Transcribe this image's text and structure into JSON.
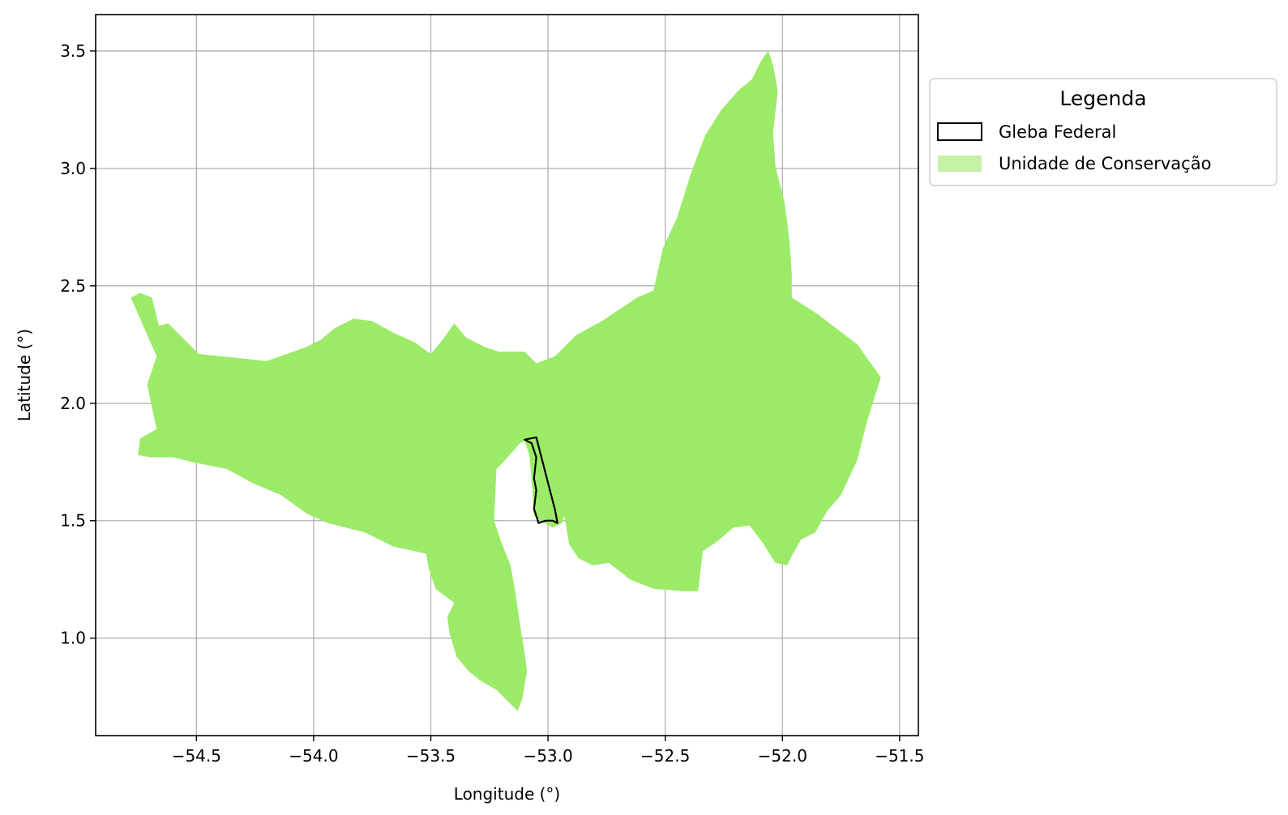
{
  "map": {
    "xlabel": "Longitude (°)",
    "ylabel": "Latitude (°)",
    "xlim": [
      -54.93,
      -51.42
    ],
    "ylim": [
      0.585,
      3.655
    ],
    "x_ticks": [
      -54.5,
      -54.0,
      -53.5,
      -53.0,
      -52.5,
      -52.0,
      -51.5
    ],
    "y_ticks": [
      1.0,
      1.5,
      2.0,
      2.5,
      3.0,
      3.5
    ],
    "x_tick_labels": [
      "−54.5",
      "−54.0",
      "−53.5",
      "−53.0",
      "−52.5",
      "−52.0",
      "−51.5"
    ],
    "y_tick_labels": [
      "1.0",
      "1.5",
      "2.0",
      "2.5",
      "3.0",
      "3.5"
    ],
    "grid": true,
    "legend": {
      "title": "Legenda",
      "placement": "outside-upper-right",
      "items": [
        {
          "label": "Gleba Federal",
          "style": "outline",
          "color": "#000000"
        },
        {
          "label": "Unidade de Conservação",
          "style": "fill",
          "color": "#9BEB68"
        }
      ]
    },
    "layers": {
      "conservation_unit": {
        "name": "Unidade de Conservação",
        "fill": "#9BEB68",
        "polygon": [
          [
            -54.78,
            2.45
          ],
          [
            -54.74,
            2.47
          ],
          [
            -54.69,
            2.45
          ],
          [
            -54.66,
            2.33
          ],
          [
            -54.62,
            2.34
          ],
          [
            -54.49,
            2.21
          ],
          [
            -54.2,
            2.18
          ],
          [
            -54.03,
            2.24
          ],
          [
            -53.97,
            2.27
          ],
          [
            -53.91,
            2.32
          ],
          [
            -53.83,
            2.36
          ],
          [
            -53.75,
            2.35
          ],
          [
            -53.66,
            2.3
          ],
          [
            -53.57,
            2.26
          ],
          [
            -53.5,
            2.21
          ],
          [
            -53.45,
            2.27
          ],
          [
            -53.4,
            2.34
          ],
          [
            -53.35,
            2.28
          ],
          [
            -53.27,
            2.24
          ],
          [
            -53.21,
            2.22
          ],
          [
            -53.1,
            2.22
          ],
          [
            -53.05,
            2.17
          ],
          [
            -52.97,
            2.2
          ],
          [
            -52.88,
            2.29
          ],
          [
            -52.77,
            2.35
          ],
          [
            -52.62,
            2.45
          ],
          [
            -52.55,
            2.48
          ],
          [
            -52.51,
            2.66
          ],
          [
            -52.45,
            2.79
          ],
          [
            -52.39,
            2.98
          ],
          [
            -52.33,
            3.14
          ],
          [
            -52.26,
            3.25
          ],
          [
            -52.19,
            3.33
          ],
          [
            -52.13,
            3.38
          ],
          [
            -52.09,
            3.46
          ],
          [
            -52.06,
            3.5
          ],
          [
            -52.04,
            3.44
          ],
          [
            -52.02,
            3.33
          ],
          [
            -52.04,
            3.15
          ],
          [
            -52.03,
            3.01
          ],
          [
            -51.99,
            2.85
          ],
          [
            -51.97,
            2.69
          ],
          [
            -51.96,
            2.55
          ],
          [
            -51.96,
            2.45
          ],
          [
            -51.85,
            2.38
          ],
          [
            -51.68,
            2.25
          ],
          [
            -51.58,
            2.11
          ],
          [
            -51.64,
            1.92
          ],
          [
            -51.68,
            1.76
          ],
          [
            -51.75,
            1.61
          ],
          [
            -51.81,
            1.54
          ],
          [
            -51.86,
            1.45
          ],
          [
            -51.92,
            1.42
          ],
          [
            -51.96,
            1.35
          ],
          [
            -51.98,
            1.31
          ],
          [
            -52.03,
            1.32
          ],
          [
            -52.08,
            1.4
          ],
          [
            -52.14,
            1.48
          ],
          [
            -52.21,
            1.47
          ],
          [
            -52.28,
            1.41
          ],
          [
            -52.34,
            1.37
          ],
          [
            -52.36,
            1.2
          ],
          [
            -52.42,
            1.2
          ],
          [
            -52.55,
            1.21
          ],
          [
            -52.65,
            1.25
          ],
          [
            -52.74,
            1.32
          ],
          [
            -52.81,
            1.31
          ],
          [
            -52.87,
            1.34
          ],
          [
            -52.91,
            1.4
          ],
          [
            -52.93,
            1.52
          ],
          [
            -52.94,
            1.49
          ],
          [
            -52.98,
            1.47
          ],
          [
            -53.03,
            1.5
          ],
          [
            -53.06,
            1.52
          ],
          [
            -53.07,
            1.67
          ],
          [
            -53.08,
            1.78
          ],
          [
            -53.1,
            1.84
          ],
          [
            -53.12,
            1.83
          ],
          [
            -53.2,
            1.74
          ],
          [
            -53.22,
            1.72
          ],
          [
            -53.23,
            1.5
          ],
          [
            -53.2,
            1.41
          ],
          [
            -53.16,
            1.31
          ],
          [
            -53.14,
            1.2
          ],
          [
            -53.12,
            1.06
          ],
          [
            -53.1,
            0.94
          ],
          [
            -53.09,
            0.86
          ],
          [
            -53.11,
            0.74
          ],
          [
            -53.13,
            0.69
          ],
          [
            -53.17,
            0.73
          ],
          [
            -53.22,
            0.78
          ],
          [
            -53.29,
            0.82
          ],
          [
            -53.34,
            0.86
          ],
          [
            -53.39,
            0.92
          ],
          [
            -53.42,
            1.02
          ],
          [
            -53.43,
            1.09
          ],
          [
            -53.4,
            1.15
          ],
          [
            -53.48,
            1.21
          ],
          [
            -53.51,
            1.3
          ],
          [
            -53.52,
            1.36
          ],
          [
            -53.57,
            1.37
          ],
          [
            -53.66,
            1.39
          ],
          [
            -53.78,
            1.45
          ],
          [
            -53.94,
            1.49
          ],
          [
            -54.03,
            1.53
          ],
          [
            -54.14,
            1.61
          ],
          [
            -54.26,
            1.66
          ],
          [
            -54.37,
            1.72
          ],
          [
            -54.52,
            1.75
          ],
          [
            -54.6,
            1.77
          ],
          [
            -54.7,
            1.77
          ],
          [
            -54.75,
            1.78
          ],
          [
            -54.74,
            1.85
          ],
          [
            -54.67,
            1.89
          ],
          [
            -54.71,
            2.08
          ],
          [
            -54.67,
            2.2
          ]
        ]
      },
      "federal_gleba": {
        "name": "Gleba Federal",
        "stroke": "#000000",
        "polygon": [
          [
            -53.1,
            1.845
          ],
          [
            -53.05,
            1.855
          ],
          [
            -53.01,
            1.7
          ],
          [
            -52.97,
            1.545
          ],
          [
            -52.96,
            1.49
          ],
          [
            -52.98,
            1.5
          ],
          [
            -53.01,
            1.5
          ],
          [
            -53.04,
            1.49
          ],
          [
            -53.06,
            1.55
          ],
          [
            -53.05,
            1.63
          ],
          [
            -53.06,
            1.68
          ],
          [
            -53.05,
            1.77
          ],
          [
            -53.07,
            1.83
          ]
        ]
      }
    }
  }
}
